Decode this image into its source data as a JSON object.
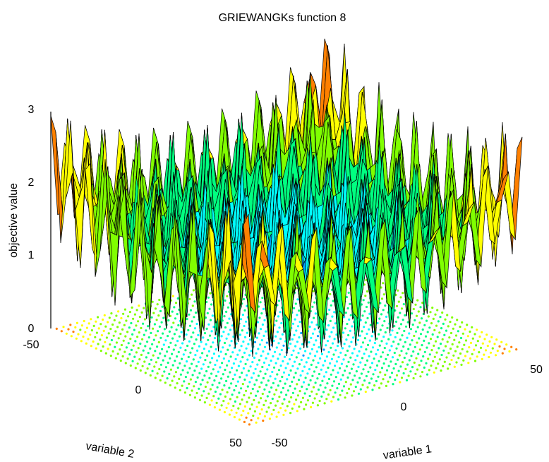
{
  "chart_data": {
    "type": "surface",
    "title": "GRIEWANGKs function 8",
    "xlabel": "variable 1",
    "ylabel": "variable 2",
    "zlabel": "objective value",
    "xlim": [
      -50,
      50
    ],
    "ylim": [
      -50,
      50
    ],
    "zlim": [
      0,
      3
    ],
    "x_ticks": [
      "-50",
      "0",
      "50"
    ],
    "y_ticks": [
      "-50",
      "0",
      "50"
    ],
    "z_ticks": [
      "0",
      "1",
      "2",
      "3"
    ],
    "function": "griewank",
    "grid_points": 41,
    "contour_below": true,
    "colors": [
      "#000080",
      "#0000ff",
      "#00a0ff",
      "#00ffff",
      "#00ff80",
      "#80ff00",
      "#ffff00",
      "#ff8000",
      "#ff0000",
      "#ff00ff"
    ]
  }
}
